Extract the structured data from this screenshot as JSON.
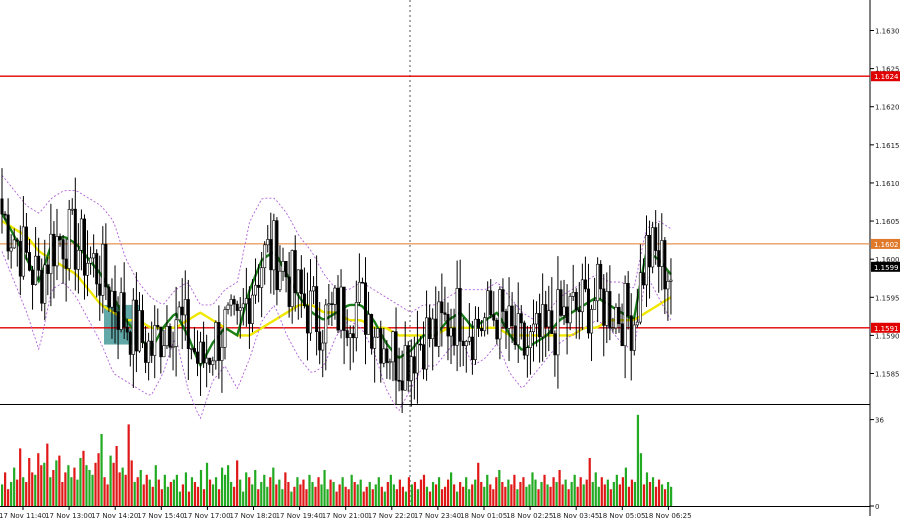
{
  "chart_data": [
    {
      "type": "candlestick",
      "title": "",
      "x_tick_labels": [
        "17 Nov 11:40",
        "17 Nov 13:00",
        "17 Nov 14:20",
        "17 Nov 15:40",
        "17 Nov 17:00",
        "17 Nov 18:20",
        "17 Nov 19:40",
        "17 Nov 21:00",
        "17 Nov 22:20",
        "17 Nov 23:40",
        "18 Nov 01:05",
        "18 Nov 02:25",
        "18 Nov 03:45",
        "18 Nov 05:05",
        "18 Nov 06:25"
      ],
      "y_tick_labels": [
        "1.1630",
        "1.1625",
        "1.1620",
        "1.1615",
        "1.1610",
        "1.1605",
        "1.1600",
        "1.1595",
        "1.1590",
        "1.1585"
      ],
      "ylim": [
        1.1581,
        1.1634
      ],
      "grid": false,
      "price_labels": [
        {
          "value": 1.1624,
          "label": "1.1624",
          "line_color": "#e00000"
        },
        {
          "value": 1.1602,
          "label": "1.1602",
          "line_color": "#e07a2a"
        },
        {
          "value": 1.1599,
          "label": "1.1599",
          "line_color": "#000000"
        },
        {
          "value": 1.1591,
          "label": "1.1591",
          "line_color": "#e00000"
        }
      ],
      "highlight_zone": {
        "bar_from": 30,
        "bar_to": 39,
        "price_high": 1.1594,
        "price_low": 1.15888,
        "color": "#2e8b8b"
      },
      "series": [
        {
          "values": [
            1.1606,
            1.1603,
            1.16,
            1.1597,
            1.1602,
            1.1603,
            1.1602,
            1.16,
            1.1598,
            1.1595,
            1.1592,
            1.159,
            1.1588,
            1.1591,
            1.1593,
            1.159,
            1.1586,
            1.1589,
            1.1591,
            1.159,
            1.1596,
            1.16,
            1.1601,
            1.1598,
            1.1595,
            1.1593,
            1.1592,
            1.1593,
            1.1594,
            1.1594,
            1.1592,
            1.1589,
            1.1587,
            1.1588,
            1.159,
            1.159,
            1.1592,
            1.1593,
            1.1591,
            1.1592,
            1.1593,
            1.159,
            1.1588,
            1.1589,
            1.159,
            1.1592,
            1.1593,
            1.1594,
            1.1595,
            1.1594,
            1.1593,
            1.1592,
            1.1601,
            1.16,
            1.1598
          ]
        },
        {
          "values": [
            1.1605,
            1.1604,
            1.1603,
            1.1601,
            1.16,
            1.1599,
            1.1598,
            1.1596,
            1.1594,
            1.1593,
            1.1592,
            1.1592,
            1.1591,
            1.1591,
            1.1591,
            1.1592,
            1.1593,
            1.1592,
            1.1591,
            1.159,
            1.159,
            1.1591,
            1.1592,
            1.1593,
            1.1594,
            1.1594,
            1.1593,
            1.1593,
            1.1592,
            1.1592,
            1.1591,
            1.1591,
            1.159,
            1.159,
            1.159,
            1.159,
            1.1591,
            1.1591,
            1.1591,
            1.1591,
            1.1591,
            1.159,
            1.159,
            1.159,
            1.159,
            1.159,
            1.159,
            1.1591,
            1.1591,
            1.1592,
            1.1592,
            1.1592,
            1.1593,
            1.1594,
            1.1595
          ]
        },
        {
          "values": [
            1.1611,
            1.1609,
            1.1607,
            1.1606,
            1.1608,
            1.1609,
            1.1609,
            1.1608,
            1.1607,
            1.1605,
            1.16,
            1.1597,
            1.1595,
            1.1594,
            1.1596,
            1.1597,
            1.1594,
            1.1594,
            1.1596,
            1.1597,
            1.1605,
            1.1608,
            1.1608,
            1.1606,
            1.1603,
            1.1601,
            1.1598,
            1.1596,
            1.1596,
            1.1597,
            1.1596,
            1.1595,
            1.1594,
            1.1593,
            1.1594,
            1.1594,
            1.1595,
            1.1596,
            1.1596,
            1.1596,
            1.1597,
            1.1595,
            1.1593,
            1.1592,
            1.1593,
            1.1595,
            1.1596,
            1.1597,
            1.1598,
            1.1597,
            1.1597,
            1.1596,
            1.1604,
            1.1605,
            1.1604
          ]
        },
        {
          "values": [
            1.1601,
            1.1597,
            1.1593,
            1.1588,
            1.1596,
            1.1597,
            1.1595,
            1.1592,
            1.1589,
            1.1585,
            1.1584,
            1.1583,
            1.1582,
            1.1585,
            1.159,
            1.1583,
            1.1579,
            1.1584,
            1.1586,
            1.1583,
            1.1587,
            1.1592,
            1.1594,
            1.159,
            1.1587,
            1.1585,
            1.1586,
            1.159,
            1.1592,
            1.1591,
            1.1588,
            1.1583,
            1.158,
            1.1583,
            1.1586,
            1.1586,
            1.1588,
            1.159,
            1.1586,
            1.1587,
            1.1589,
            1.1585,
            1.1583,
            1.1585,
            1.1587,
            1.1589,
            1.159,
            1.1591,
            1.1592,
            1.1591,
            1.1589,
            1.1588,
            1.1598,
            1.1595,
            1.1592
          ]
        }
      ]
    },
    {
      "type": "bar",
      "title": "",
      "y_tick_labels": [
        "36",
        "0"
      ],
      "ylim": [
        0,
        40
      ],
      "values": [
        9,
        14,
        7,
        10,
        16,
        11,
        24,
        12,
        10,
        20,
        14,
        13,
        22,
        17,
        18,
        26,
        12,
        15,
        19,
        21,
        10,
        14,
        17,
        12,
        16,
        11,
        20,
        23,
        17,
        15,
        13,
        18,
        22,
        30,
        12,
        9,
        21,
        18,
        25,
        14,
        16,
        13,
        34,
        19,
        10,
        12,
        15,
        9,
        13,
        11,
        8,
        17,
        11,
        7,
        13,
        8,
        10,
        11,
        13,
        6,
        9,
        14,
        6,
        12,
        10,
        8,
        15,
        7,
        18,
        11,
        9,
        12,
        7,
        16,
        13,
        17,
        10,
        8,
        19,
        11,
        6,
        14,
        12,
        9,
        15,
        7,
        10,
        13,
        8,
        12,
        16,
        9,
        11,
        7,
        14,
        10,
        6,
        8,
        12,
        9,
        11,
        7,
        13,
        10,
        8,
        12,
        9,
        15,
        7,
        11,
        10,
        6,
        9,
        12,
        8,
        7,
        13,
        10,
        9,
        11,
        6,
        8,
        10,
        7,
        9,
        12,
        8,
        6,
        10,
        13,
        9,
        7,
        11,
        8,
        6,
        12,
        9,
        10,
        7,
        11,
        13,
        8,
        6,
        10,
        9,
        12,
        7,
        8,
        11,
        14,
        9,
        6,
        10,
        8,
        12,
        7,
        9,
        11,
        18,
        10,
        8,
        13,
        9,
        7,
        12,
        15,
        10,
        8,
        11,
        9,
        13,
        7,
        10,
        12,
        8,
        9,
        14,
        11,
        7,
        10,
        13,
        9,
        8,
        12,
        10,
        15,
        9,
        11,
        7,
        10,
        13,
        8,
        12,
        9,
        11,
        20,
        10,
        14,
        8,
        12,
        9,
        11,
        7,
        10,
        13,
        9,
        12,
        16,
        8,
        11,
        10,
        38,
        22,
        9,
        14,
        10,
        12,
        8,
        11,
        9,
        7,
        10,
        8
      ]
    }
  ]
}
